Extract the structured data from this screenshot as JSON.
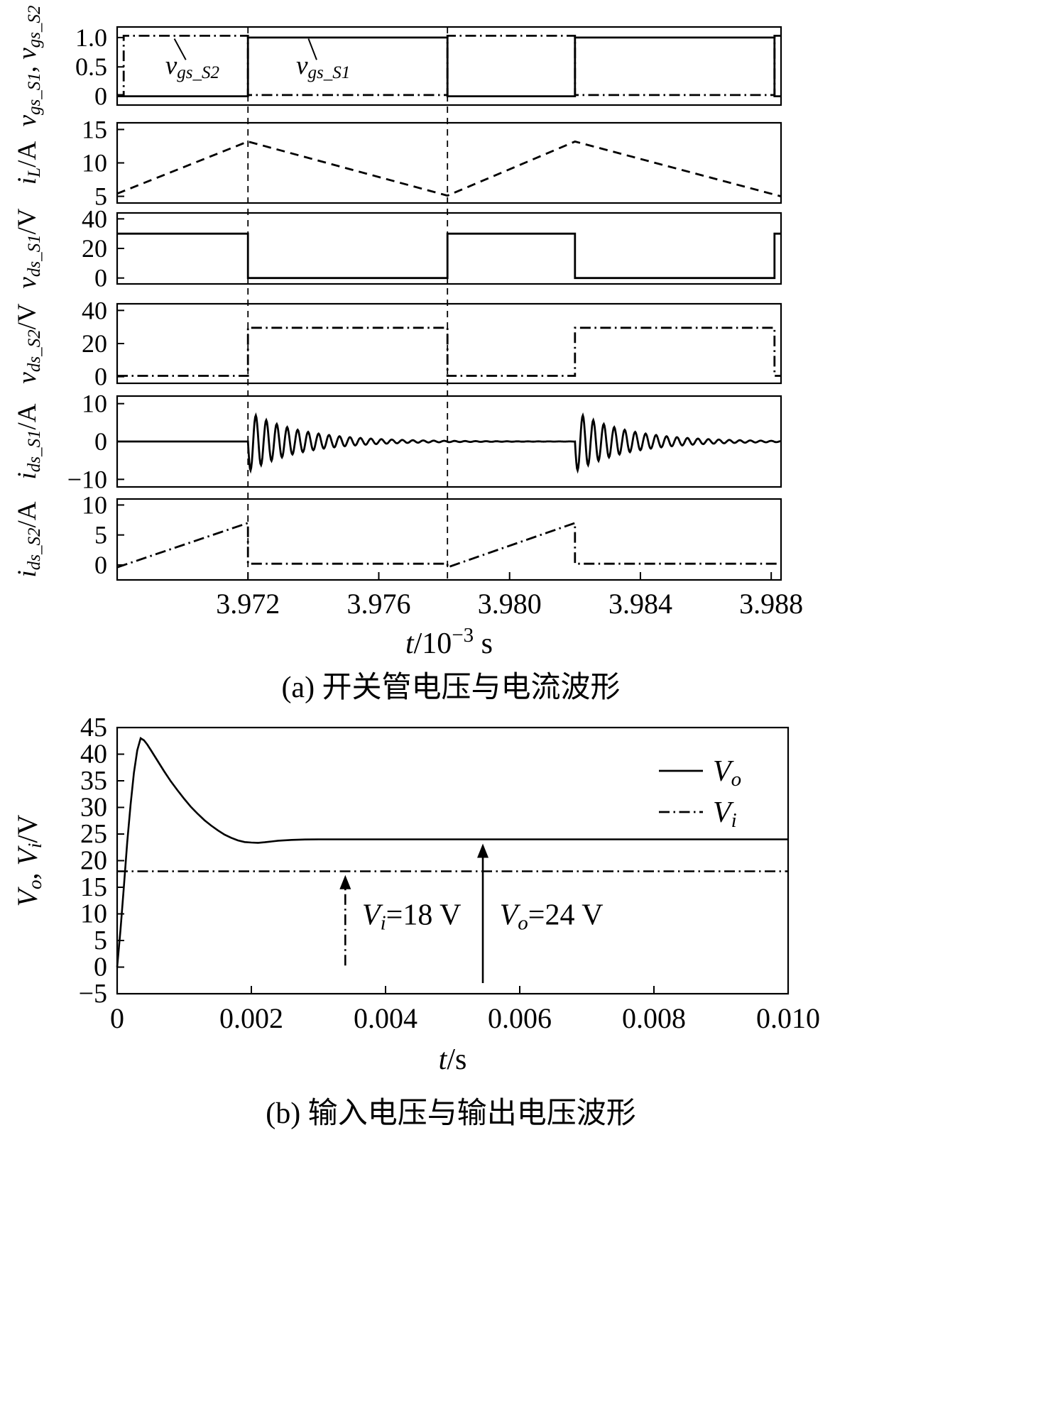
{
  "page": {
    "background": "#ffffff",
    "ink": "#000000"
  },
  "chart_data": [
    {
      "id": "figure_a",
      "type": "line",
      "subtype": "multi-panel-oscilloscope-waveforms",
      "caption": "(a) 开关管电压与电流波形",
      "x_axis": {
        "min": 3.968,
        "max": 3.9883,
        "ticks": [
          3.972,
          3.976,
          3.98,
          3.984,
          3.988
        ],
        "tick_labels": [
          "3.972",
          "3.976",
          "3.980",
          "3.984",
          "3.988"
        ],
        "label_segments": [
          {
            "t": "t",
            "s": "i"
          },
          {
            "t": "/10",
            "s": "n"
          },
          {
            "t": "−3",
            "s": "sup"
          },
          {
            "t": " s",
            "s": "n"
          }
        ]
      },
      "guide_lines_x": [
        3.972,
        3.9781
      ],
      "panels": [
        {
          "name": "gate-voltage-panel",
          "ylabel_segments": [
            {
              "t": "v",
              "s": "i"
            },
            {
              "t": "gs_S1",
              "s": "sub"
            },
            {
              "t": ", ",
              "s": "n"
            },
            {
              "t": "v",
              "s": "i"
            },
            {
              "t": "gs_S2",
              "s": "sub"
            }
          ],
          "ymin": -0.15,
          "ymax": 1.18,
          "yticks": [
            0,
            0.5,
            1.0
          ],
          "ytick_labels": [
            "0",
            "0.5",
            "1.0"
          ],
          "series": [
            {
              "name": "v_gs_S1",
              "style": "solid",
              "points": [
                [
                  3.968,
                  0
                ],
                [
                  3.972,
                  0
                ],
                [
                  3.972,
                  1
                ],
                [
                  3.9781,
                  1
                ],
                [
                  3.9781,
                  0
                ],
                [
                  3.982,
                  0
                ],
                [
                  3.982,
                  1
                ],
                [
                  3.9881,
                  1
                ],
                [
                  3.9881,
                  0
                ],
                [
                  3.9883,
                  0
                ]
              ]
            },
            {
              "name": "v_gs_S2",
              "style": "dashdot",
              "points": [
                [
                  3.968,
                  0.02
                ],
                [
                  3.9682,
                  0.02
                ],
                [
                  3.9682,
                  1.03
                ],
                [
                  3.972,
                  1.03
                ],
                [
                  3.972,
                  0.02
                ],
                [
                  3.9781,
                  0.02
                ],
                [
                  3.9781,
                  1.03
                ],
                [
                  3.982,
                  1.03
                ],
                [
                  3.982,
                  0.02
                ],
                [
                  3.9881,
                  0.02
                ],
                [
                  3.9881,
                  1.03
                ],
                [
                  3.9883,
                  1.03
                ]
              ]
            }
          ],
          "labels": [
            {
              "name": "v_gs_S2-label",
              "segments": [
                {
                  "t": "v",
                  "s": "i"
                },
                {
                  "t": "gs_S2",
                  "s": "sub"
                }
              ],
              "x": 3.9703,
              "y": 0.38,
              "leader": [
                [
                  3.9701,
                  0.62
                ],
                [
                  3.96975,
                  0.98
                ]
              ]
            },
            {
              "name": "v_gs_S1-label",
              "segments": [
                {
                  "t": "v",
                  "s": "i"
                },
                {
                  "t": "gs_S1",
                  "s": "sub"
                }
              ],
              "x": 3.9743,
              "y": 0.38,
              "leader": [
                [
                  3.9741,
                  0.62
                ],
                [
                  3.97385,
                  0.98
                ]
              ]
            }
          ]
        },
        {
          "name": "inductor-current-panel",
          "ylabel_segments": [
            {
              "t": "i",
              "s": "i"
            },
            {
              "t": "L",
              "s": "sub"
            },
            {
              "t": "/A",
              "s": "n"
            }
          ],
          "ymin": 4,
          "ymax": 16,
          "yticks": [
            5,
            10,
            15
          ],
          "ytick_labels": [
            "5",
            "10",
            "15"
          ],
          "series": [
            {
              "name": "i_L",
              "style": "dashed",
              "points": [
                [
                  3.968,
                  5.4
                ],
                [
                  3.972,
                  13.2
                ],
                [
                  3.9781,
                  5.1
                ],
                [
                  3.982,
                  13.2
                ],
                [
                  3.9883,
                  5.0
                ]
              ]
            }
          ]
        },
        {
          "name": "vds-S1-panel",
          "ylabel_segments": [
            {
              "t": "v",
              "s": "i"
            },
            {
              "t": "ds_S1",
              "s": "sub"
            },
            {
              "t": "/V",
              "s": "n"
            }
          ],
          "ymin": -4,
          "ymax": 44,
          "yticks": [
            0,
            20,
            40
          ],
          "ytick_labels": [
            "0",
            "20",
            "40"
          ],
          "series": [
            {
              "name": "v_ds_S1",
              "style": "solid",
              "points": [
                [
                  3.968,
                  30
                ],
                [
                  3.972,
                  30
                ],
                [
                  3.972,
                  0
                ],
                [
                  3.9781,
                  0
                ],
                [
                  3.9781,
                  30
                ],
                [
                  3.982,
                  30
                ],
                [
                  3.982,
                  0
                ],
                [
                  3.9881,
                  0
                ],
                [
                  3.9881,
                  30
                ],
                [
                  3.9883,
                  30
                ]
              ]
            }
          ]
        },
        {
          "name": "vds-S2-panel",
          "ylabel_segments": [
            {
              "t": "v",
              "s": "i"
            },
            {
              "t": "ds_S2",
              "s": "sub"
            },
            {
              "t": "/V",
              "s": "n"
            }
          ],
          "ymin": -4,
          "ymax": 44,
          "yticks": [
            0,
            20,
            40
          ],
          "ytick_labels": [
            "0",
            "20",
            "40"
          ],
          "series": [
            {
              "name": "v_ds_S2",
              "style": "dashdot",
              "points": [
                [
                  3.968,
                  0.5
                ],
                [
                  3.972,
                  0.5
                ],
                [
                  3.972,
                  29.5
                ],
                [
                  3.9781,
                  29.5
                ],
                [
                  3.9781,
                  0.5
                ],
                [
                  3.982,
                  0.5
                ],
                [
                  3.982,
                  29.5
                ],
                [
                  3.9881,
                  29.5
                ],
                [
                  3.9881,
                  0.5
                ],
                [
                  3.9883,
                  0.5
                ]
              ]
            }
          ]
        },
        {
          "name": "ids-S1-panel",
          "ylabel_segments": [
            {
              "t": "i",
              "s": "i"
            },
            {
              "t": "ds_S1",
              "s": "sub"
            },
            {
              "t": "/A",
              "s": "n"
            }
          ],
          "ymin": -12,
          "ymax": 12,
          "yticks": [
            -10,
            0,
            10
          ],
          "ytick_labels": [
            "−10",
            "0",
            "10"
          ],
          "series": [
            {
              "name": "i_ds_S1",
              "style": "solid",
              "generator": {
                "kind": "ringing-bursts",
                "baseline": 0,
                "flat_from": 3.968,
                "bursts": [
                  {
                    "t0": 3.972,
                    "t1": 3.982,
                    "amp": 8,
                    "tau": 0.0016,
                    "period": 0.00032
                  },
                  {
                    "t0": 3.982,
                    "t1": 3.9883,
                    "amp": 8,
                    "tau": 0.0016,
                    "period": 0.00032
                  }
                ]
              }
            }
          ]
        },
        {
          "name": "ids-S2-panel",
          "ylabel_segments": [
            {
              "t": "i",
              "s": "i"
            },
            {
              "t": "ds_S2",
              "s": "sub"
            },
            {
              "t": "/A",
              "s": "n"
            }
          ],
          "ymin": -2.5,
          "ymax": 11,
          "yticks": [
            0,
            5,
            10
          ],
          "ytick_labels": [
            "0",
            "5",
            "10"
          ],
          "series": [
            {
              "name": "i_ds_S2",
              "style": "dashdot",
              "points": [
                [
                  3.968,
                  -0.4
                ],
                [
                  3.972,
                  7
                ],
                [
                  3.972,
                  0.2
                ],
                [
                  3.9781,
                  0.2
                ],
                [
                  3.9781,
                  -0.4
                ],
                [
                  3.982,
                  7
                ],
                [
                  3.982,
                  0.2
                ],
                [
                  3.9883,
                  0.2
                ]
              ]
            }
          ]
        }
      ]
    },
    {
      "id": "figure_b",
      "type": "line",
      "caption": "(b) 输入电压与输出电压波形",
      "x_axis": {
        "min": 0,
        "max": 0.01,
        "ticks": [
          0,
          0.002,
          0.004,
          0.006,
          0.008,
          0.01
        ],
        "tick_labels": [
          "0",
          "0.002",
          "0.004",
          "0.006",
          "0.008",
          "0.010"
        ],
        "label_segments": [
          {
            "t": "t",
            "s": "i"
          },
          {
            "t": "/s",
            "s": "n"
          }
        ]
      },
      "y_axis": {
        "min": -5,
        "max": 45,
        "ticks": [
          -5,
          0,
          5,
          10,
          15,
          20,
          25,
          30,
          35,
          40,
          45
        ],
        "tick_labels": [
          "−5",
          "0",
          "5",
          "10",
          "15",
          "20",
          "25",
          "30",
          "35",
          "40",
          "45"
        ],
        "label_segments": [
          {
            "t": "V",
            "s": "i"
          },
          {
            "t": "o",
            "s": "sub"
          },
          {
            "t": ", ",
            "s": "n"
          },
          {
            "t": "V",
            "s": "i"
          },
          {
            "t": "i",
            "s": "sub"
          },
          {
            "t": "/V",
            "s": "n"
          }
        ]
      },
      "series": [
        {
          "name": "V_o",
          "style": "solid",
          "points": [
            [
              0,
              0
            ],
            [
              5e-05,
              7
            ],
            [
              0.0001,
              15
            ],
            [
              0.00015,
              23.5
            ],
            [
              0.0002,
              30.5
            ],
            [
              0.00025,
              36.5
            ],
            [
              0.0003,
              40.7
            ],
            [
              0.00035,
              43
            ],
            [
              0.0004,
              42.6
            ],
            [
              0.00045,
              41.8
            ],
            [
              0.0005,
              40.8
            ],
            [
              0.0006,
              38.8
            ],
            [
              0.0007,
              36.8
            ],
            [
              0.0008,
              34.9
            ],
            [
              0.0009,
              33.2
            ],
            [
              0.001,
              31.6
            ],
            [
              0.0011,
              30.1
            ],
            [
              0.0012,
              28.8
            ],
            [
              0.0013,
              27.6
            ],
            [
              0.0014,
              26.6
            ],
            [
              0.0015,
              25.7
            ],
            [
              0.0016,
              24.9
            ],
            [
              0.0017,
              24.3
            ],
            [
              0.0018,
              23.8
            ],
            [
              0.0019,
              23.5
            ],
            [
              0.002,
              23.4
            ],
            [
              0.0021,
              23.35
            ],
            [
              0.0022,
              23.45
            ],
            [
              0.0023,
              23.6
            ],
            [
              0.0024,
              23.75
            ],
            [
              0.0026,
              23.9
            ],
            [
              0.0028,
              23.98
            ],
            [
              0.003,
              24
            ],
            [
              0.0035,
              24
            ],
            [
              0.004,
              24
            ],
            [
              0.005,
              24
            ],
            [
              0.006,
              24
            ],
            [
              0.007,
              24
            ],
            [
              0.008,
              24
            ],
            [
              0.009,
              24
            ],
            [
              0.01,
              24
            ]
          ]
        },
        {
          "name": "V_i",
          "style": "dashdot",
          "points": [
            [
              0,
              18
            ],
            [
              0.01,
              18
            ]
          ]
        }
      ],
      "legend": {
        "entries": [
          {
            "name": "V_o",
            "segments": [
              {
                "t": "V",
                "s": "i"
              },
              {
                "t": "o",
                "s": "sub"
              }
            ],
            "style": "solid"
          },
          {
            "name": "V_i",
            "segments": [
              {
                "t": "V",
                "s": "i"
              },
              {
                "t": "i",
                "s": "sub"
              }
            ],
            "style": "dashdot"
          }
        ]
      },
      "annotations": [
        {
          "name": "Vi-18V",
          "segments": [
            {
              "t": "V",
              "s": "i"
            },
            {
              "t": "i",
              "s": "sub"
            },
            {
              "t": "=18 V",
              "s": "n"
            }
          ],
          "x": 0.00365,
          "y": 8,
          "arrow": {
            "x": 0.0034,
            "y_from": 0.3,
            "y_to": 17.3,
            "style": "dashdot"
          }
        },
        {
          "name": "Vo-24V",
          "segments": [
            {
              "t": "V",
              "s": "i"
            },
            {
              "t": "o",
              "s": "sub"
            },
            {
              "t": "=24 V",
              "s": "n"
            }
          ],
          "x": 0.0057,
          "y": 8,
          "arrow": {
            "x": 0.00545,
            "y_from": -3,
            "y_to": 23.2,
            "style": "solid"
          }
        }
      ],
      "key_values": {
        "V_i": "18 V",
        "V_o": "24 V",
        "V_o_peak": 43,
        "V_o_steady": 24
      }
    }
  ]
}
